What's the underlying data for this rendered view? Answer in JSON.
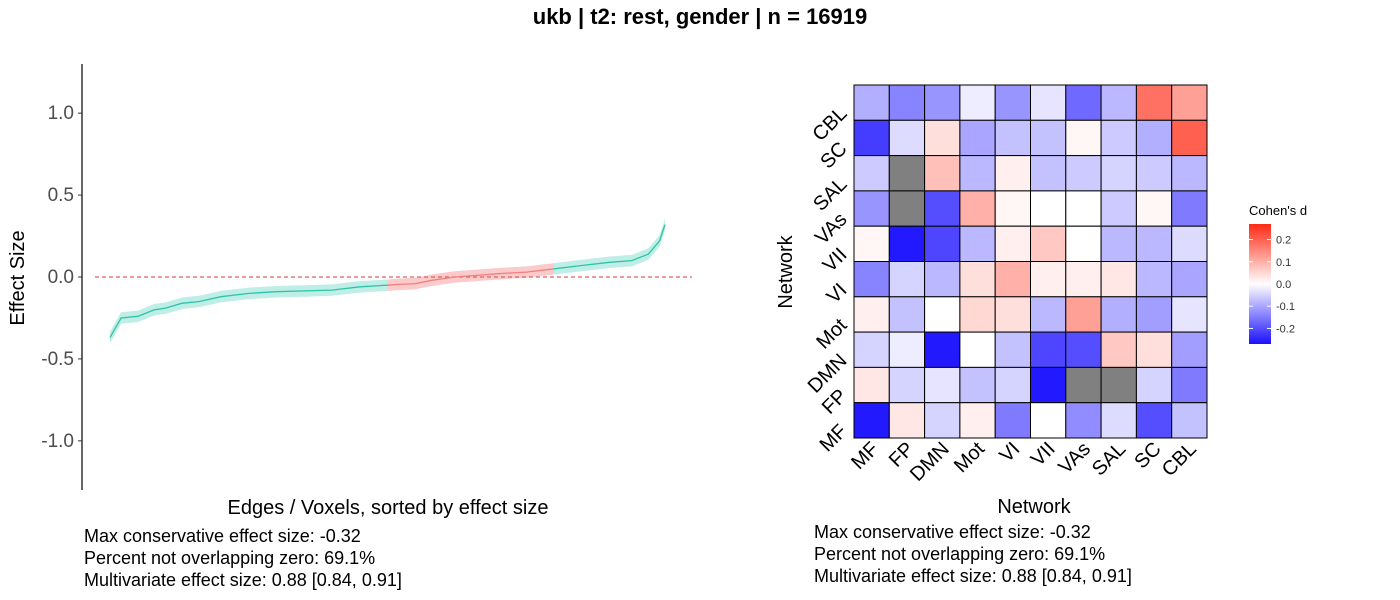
{
  "title": "ukb | t2: rest, gender | n = 16919",
  "chart_data": [
    {
      "type": "line",
      "name": "effect-size-curve",
      "xlabel": "Edges / Voxels, sorted by effect size",
      "ylabel": "Effect Size",
      "ylim": [
        -1.3,
        1.3
      ],
      "yticks": [
        1.0,
        0.5,
        0.0,
        -0.5,
        -1.0
      ],
      "ytick_labels": [
        "1.0",
        "0.5",
        "0.0",
        "-0.5",
        "-1.0"
      ],
      "reference_line": 0,
      "grid": false,
      "colors": {
        "non_overlapping": "#2ec4a8",
        "non_overlapping_band": "#bfeee6",
        "overlapping": "#f08080",
        "overlapping_band": "#fbcaca",
        "reference": "#e06060"
      },
      "x": [
        0,
        0.02,
        0.05,
        0.08,
        0.1,
        0.13,
        0.16,
        0.2,
        0.25,
        0.3,
        0.35,
        0.4,
        0.45,
        0.5,
        0.52,
        0.55,
        0.58,
        0.62,
        0.66,
        0.7,
        0.75,
        0.8,
        0.85,
        0.9,
        0.94,
        0.97,
        0.99,
        1
      ],
      "y": [
        -0.37,
        -0.25,
        -0.24,
        -0.2,
        -0.19,
        -0.16,
        -0.15,
        -0.12,
        -0.1,
        -0.09,
        -0.085,
        -0.08,
        -0.06,
        -0.05,
        -0.045,
        -0.04,
        -0.02,
        0.0,
        0.01,
        0.02,
        0.03,
        0.05,
        0.07,
        0.09,
        0.1,
        0.14,
        0.22,
        0.32
      ],
      "ci_halfwidth": 0.035,
      "overlap_zero_range": [
        0.5,
        0.8
      ]
    },
    {
      "type": "heatmap",
      "name": "network-matrix",
      "xlabel": "Network",
      "ylabel": "Network",
      "x_categories": [
        "MF",
        "FP",
        "DMN",
        "Mot",
        "VI",
        "VII",
        "VAs",
        "SAL",
        "SC",
        "CBL"
      ],
      "y_categories_top_to_bottom": [
        "CBL",
        "SC",
        "SAL",
        "VAs",
        "VII",
        "VI",
        "Mot",
        "DMN",
        "FP",
        "MF"
      ],
      "values_top_to_bottom": [
        [
          -0.09,
          -0.14,
          -0.12,
          -0.02,
          -0.12,
          -0.03,
          -0.17,
          -0.08,
          0.18,
          0.12
        ],
        [
          -0.22,
          -0.04,
          0.04,
          -0.1,
          -0.07,
          -0.07,
          0.01,
          -0.06,
          -0.09,
          0.2
        ],
        [
          -0.06,
          null,
          0.08,
          -0.08,
          0.02,
          -0.07,
          -0.06,
          -0.05,
          -0.06,
          -0.08
        ],
        [
          -0.12,
          null,
          -0.2,
          0.1,
          0.01,
          0.0,
          0.0,
          -0.06,
          0.01,
          -0.15
        ],
        [
          0.01,
          -0.26,
          -0.21,
          -0.08,
          0.02,
          0.07,
          0.0,
          -0.08,
          -0.08,
          -0.04
        ],
        [
          -0.14,
          -0.05,
          -0.08,
          0.04,
          0.1,
          0.02,
          0.02,
          0.03,
          -0.08,
          -0.1
        ],
        [
          0.02,
          -0.07,
          0.0,
          0.05,
          0.04,
          -0.08,
          0.12,
          -0.09,
          -0.11,
          -0.03
        ],
        [
          -0.05,
          -0.02,
          -0.26,
          0.0,
          -0.07,
          -0.21,
          -0.2,
          0.07,
          0.04,
          -0.11
        ],
        [
          0.03,
          -0.05,
          -0.03,
          -0.07,
          -0.05,
          -0.26,
          null,
          null,
          -0.05,
          -0.15
        ],
        [
          -0.26,
          0.03,
          -0.05,
          0.02,
          -0.15,
          0.0,
          -0.13,
          -0.04,
          -0.2,
          -0.07
        ]
      ],
      "legend": {
        "title": "Cohen's d",
        "placement": "right",
        "ticks": [
          0.2,
          0.1,
          0.0,
          -0.1,
          -0.2
        ],
        "tick_labels": [
          "0.2",
          "0.1",
          "0.0",
          "-0.1",
          "-0.2"
        ],
        "range": [
          -0.27,
          0.27
        ]
      },
      "colors": {
        "low": "#1a10ff",
        "mid": "#ffffff",
        "high": "#ff2a14",
        "na": "#808080",
        "border": "#000000"
      }
    }
  ],
  "stats_left": [
    "Max conservative effect size: -0.32",
    "Percent not overlapping zero: 69.1%",
    "Multivariate effect size: 0.88 [0.84, 0.91]"
  ],
  "stats_right": [
    "Max conservative effect size: -0.32",
    "Percent not overlapping zero: 69.1%",
    "Multivariate effect size: 0.88 [0.84, 0.91]"
  ]
}
